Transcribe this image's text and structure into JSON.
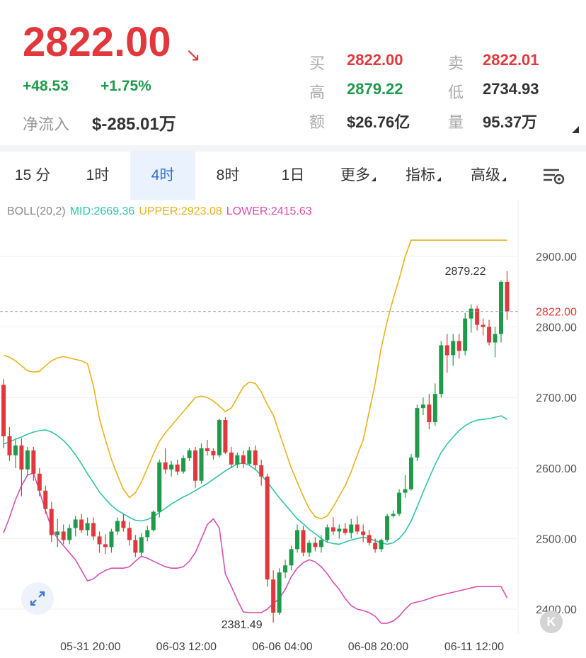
{
  "quote": {
    "price": "2822.00",
    "change": "+48.53",
    "change_pct": "+1.75%",
    "netflow_label": "净流入",
    "netflow_value": "$-285.01万",
    "stats": [
      {
        "label": "买",
        "value": "2822.00",
        "color": "#e0383c"
      },
      {
        "label": "卖",
        "value": "2822.01",
        "color": "#e0383c"
      },
      {
        "label": "高",
        "value": "2879.22",
        "color": "#1f9a4b"
      },
      {
        "label": "低",
        "value": "2734.93",
        "color": "#333333"
      },
      {
        "label": "额",
        "value": "$26.76亿",
        "color": "#333333"
      },
      {
        "label": "量",
        "value": "95.37万",
        "color": "#333333"
      }
    ]
  },
  "tabs": [
    {
      "label": "15 分"
    },
    {
      "label": "1时"
    },
    {
      "label": "4时",
      "active": true
    },
    {
      "label": "8时"
    },
    {
      "label": "1日"
    },
    {
      "label": "更多",
      "dropdown": true
    },
    {
      "label": "指标",
      "dropdown": true
    },
    {
      "label": "高级",
      "dropdown": true
    }
  ],
  "settings_icon": "chart-settings-icon",
  "indicator": {
    "name": "BOLL(20,2)",
    "mid": "MID:2669.36",
    "upper": "UPPER:2923.08",
    "lower": "LOWER:2415.63",
    "mid_color": "#2ec4a6",
    "upper_color": "#e8b21a",
    "lower_color": "#d64fb1"
  },
  "chart_data": {
    "type": "candlestick",
    "ylim": [
      2370,
      2935
    ],
    "y_ticks": [
      "2900.00",
      "2800.00",
      "2700.00",
      "2600.00",
      "2500.00",
      "2400.00"
    ],
    "y_tick_values": [
      2900,
      2800,
      2700,
      2600,
      2500,
      2400
    ],
    "x_ticks": [
      "05-31 20:00",
      "06-03 12:00",
      "06-06 04:00",
      "06-08 20:00",
      "06-11 12:00"
    ],
    "x_tick_index": [
      21,
      37,
      53,
      69,
      85
    ],
    "current_price": 2822.0,
    "current_price_label": "2822.00",
    "high_label": "2879.22",
    "high_index": 84,
    "low_label": "2381.49",
    "low_index": 46,
    "up_color": "#1f9a4b",
    "down_color": "#e0383c",
    "candles": [
      [
        2718,
        2726,
        2628,
        2645
      ],
      [
        2645,
        2658,
        2610,
        2618
      ],
      [
        2618,
        2640,
        2600,
        2632
      ],
      [
        2632,
        2642,
        2560,
        2598
      ],
      [
        2598,
        2630,
        2590,
        2625
      ],
      [
        2625,
        2630,
        2582,
        2592
      ],
      [
        2592,
        2600,
        2560,
        2568
      ],
      [
        2568,
        2575,
        2535,
        2542
      ],
      [
        2542,
        2552,
        2495,
        2505
      ],
      [
        2505,
        2528,
        2488,
        2510
      ],
      [
        2510,
        2520,
        2492,
        2498
      ],
      [
        2498,
        2520,
        2492,
        2515
      ],
      [
        2515,
        2532,
        2503,
        2527
      ],
      [
        2527,
        2535,
        2508,
        2512
      ],
      [
        2512,
        2530,
        2504,
        2522
      ],
      [
        2522,
        2530,
        2498,
        2503
      ],
      [
        2503,
        2510,
        2480,
        2492
      ],
      [
        2492,
        2506,
        2478,
        2488
      ],
      [
        2488,
        2514,
        2480,
        2510
      ],
      [
        2510,
        2530,
        2505,
        2525
      ],
      [
        2525,
        2535,
        2510,
        2515
      ],
      [
        2515,
        2524,
        2490,
        2498
      ],
      [
        2498,
        2505,
        2474,
        2480
      ],
      [
        2480,
        2508,
        2475,
        2502
      ],
      [
        2502,
        2518,
        2496,
        2512
      ],
      [
        2512,
        2540,
        2510,
        2538
      ],
      [
        2538,
        2612,
        2530,
        2608
      ],
      [
        2608,
        2628,
        2592,
        2598
      ],
      [
        2598,
        2610,
        2588,
        2605
      ],
      [
        2605,
        2612,
        2590,
        2595
      ],
      [
        2595,
        2618,
        2592,
        2614
      ],
      [
        2614,
        2628,
        2610,
        2625
      ],
      [
        2625,
        2630,
        2572,
        2582
      ],
      [
        2582,
        2635,
        2578,
        2628
      ],
      [
        2628,
        2640,
        2618,
        2624
      ],
      [
        2624,
        2628,
        2612,
        2618
      ],
      [
        2618,
        2670,
        2615,
        2668
      ],
      [
        2668,
        2672,
        2620,
        2622
      ],
      [
        2622,
        2630,
        2600,
        2605
      ],
      [
        2605,
        2622,
        2600,
        2618
      ],
      [
        2618,
        2625,
        2600,
        2606
      ],
      [
        2606,
        2630,
        2604,
        2625
      ],
      [
        2625,
        2632,
        2598,
        2604
      ],
      [
        2604,
        2612,
        2575,
        2588
      ],
      [
        2588,
        2592,
        2432,
        2442
      ],
      [
        2442,
        2455,
        2381,
        2395
      ],
      [
        2395,
        2458,
        2392,
        2452
      ],
      [
        2452,
        2470,
        2444,
        2462
      ],
      [
        2462,
        2490,
        2455,
        2485
      ],
      [
        2485,
        2520,
        2480,
        2512
      ],
      [
        2512,
        2518,
        2475,
        2480
      ],
      [
        2480,
        2498,
        2474,
        2494
      ],
      [
        2494,
        2502,
        2482,
        2488
      ],
      [
        2488,
        2505,
        2480,
        2498
      ],
      [
        2498,
        2520,
        2495,
        2516
      ],
      [
        2516,
        2530,
        2505,
        2510
      ],
      [
        2510,
        2520,
        2500,
        2514
      ],
      [
        2514,
        2522,
        2505,
        2508
      ],
      [
        2508,
        2528,
        2500,
        2520
      ],
      [
        2520,
        2532,
        2506,
        2510
      ],
      [
        2510,
        2520,
        2495,
        2505
      ],
      [
        2505,
        2512,
        2490,
        2494
      ],
      [
        2494,
        2500,
        2480,
        2485
      ],
      [
        2485,
        2500,
        2481,
        2498
      ],
      [
        2498,
        2535,
        2495,
        2532
      ],
      [
        2532,
        2540,
        2530,
        2535
      ],
      [
        2535,
        2570,
        2532,
        2565
      ],
      [
        2565,
        2590,
        2558,
        2570
      ],
      [
        2570,
        2620,
        2568,
        2615
      ],
      [
        2615,
        2690,
        2610,
        2685
      ],
      [
        2685,
        2700,
        2675,
        2690
      ],
      [
        2690,
        2705,
        2655,
        2665
      ],
      [
        2665,
        2720,
        2660,
        2705
      ],
      [
        2705,
        2780,
        2700,
        2774
      ],
      [
        2774,
        2790,
        2735,
        2760
      ],
      [
        2760,
        2790,
        2745,
        2780
      ],
      [
        2780,
        2790,
        2755,
        2766
      ],
      [
        2766,
        2820,
        2760,
        2812
      ],
      [
        2812,
        2832,
        2792,
        2826
      ],
      [
        2826,
        2830,
        2795,
        2803
      ],
      [
        2803,
        2812,
        2788,
        2800
      ],
      [
        2800,
        2810,
        2774,
        2778
      ],
      [
        2778,
        2800,
        2757,
        2790
      ],
      [
        2790,
        2866,
        2778,
        2864
      ],
      [
        2864,
        2879,
        2810,
        2822
      ]
    ],
    "mid": [
      2634,
      2637,
      2641,
      2644,
      2648,
      2651,
      2653,
      2654,
      2651,
      2646,
      2639,
      2630,
      2619,
      2606,
      2592,
      2579,
      2566,
      2556,
      2547,
      2540,
      2535,
      2530,
      2526,
      2525,
      2527,
      2531,
      2537,
      2543,
      2549,
      2554,
      2559,
      2563,
      2568,
      2573,
      2578,
      2584,
      2590,
      2596,
      2601,
      2606,
      2607,
      2604,
      2598,
      2590,
      2580,
      2569,
      2558,
      2548,
      2538,
      2528,
      2521,
      2513,
      2507,
      2500,
      2495,
      2493,
      2492,
      2495,
      2498,
      2500,
      2502,
      2500,
      2497,
      2494,
      2492,
      2494,
      2500,
      2510,
      2525,
      2545,
      2566,
      2586,
      2605,
      2622,
      2634,
      2644,
      2653,
      2660,
      2665,
      2668,
      2669,
      2670,
      2672,
      2674,
      2669
    ],
    "upper": [
      2760,
      2757,
      2752,
      2745,
      2738,
      2736,
      2737,
      2745,
      2752,
      2756,
      2758,
      2756,
      2754,
      2752,
      2748,
      2716,
      2670,
      2640,
      2612,
      2590,
      2570,
      2558,
      2565,
      2580,
      2600,
      2620,
      2638,
      2650,
      2660,
      2670,
      2680,
      2690,
      2700,
      2702,
      2700,
      2695,
      2688,
      2680,
      2685,
      2700,
      2715,
      2722,
      2720,
      2708,
      2690,
      2675,
      2650,
      2625,
      2600,
      2580,
      2560,
      2542,
      2531,
      2528,
      2532,
      2545,
      2560,
      2575,
      2595,
      2618,
      2640,
      2680,
      2720,
      2770,
      2808,
      2840,
      2868,
      2900,
      2923,
      2923,
      2923,
      2923,
      2923,
      2923,
      2923,
      2923,
      2923,
      2923,
      2923,
      2923,
      2923,
      2923,
      2923,
      2923,
      2923
    ],
    "lower": [
      2508,
      2530,
      2555,
      2575,
      2590,
      2593,
      2567,
      2540,
      2515,
      2500,
      2490,
      2480,
      2470,
      2455,
      2440,
      2443,
      2450,
      2455,
      2458,
      2458,
      2458,
      2460,
      2468,
      2475,
      2472,
      2468,
      2464,
      2460,
      2458,
      2458,
      2460,
      2468,
      2480,
      2500,
      2520,
      2528,
      2515,
      2450,
      2432,
      2413,
      2396,
      2395,
      2395,
      2395,
      2400,
      2408,
      2415,
      2428,
      2446,
      2458,
      2466,
      2470,
      2467,
      2460,
      2450,
      2438,
      2428,
      2415,
      2405,
      2400,
      2398,
      2395,
      2390,
      2380,
      2380,
      2383,
      2390,
      2400,
      2408,
      2410,
      2412,
      2415,
      2418,
      2420,
      2422,
      2424,
      2426,
      2428,
      2430,
      2432,
      2432,
      2432,
      2432,
      2432,
      2416
    ]
  }
}
